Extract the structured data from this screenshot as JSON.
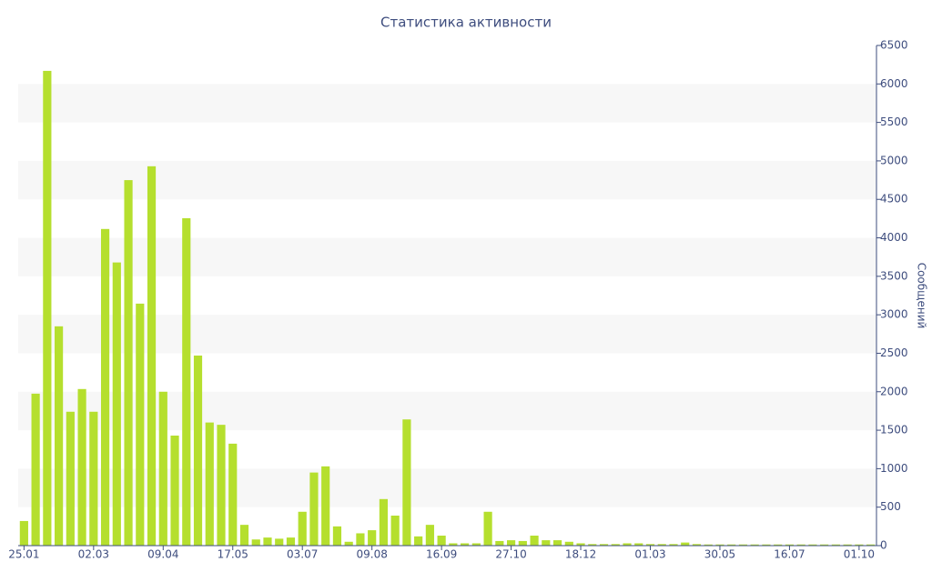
{
  "chart_data": {
    "type": "bar",
    "title": "Статистика активности",
    "y_label": "Сообщений",
    "categories": [
      "25.01",
      null,
      null,
      null,
      null,
      null,
      "02.03",
      null,
      null,
      null,
      null,
      null,
      "09.04",
      null,
      null,
      null,
      null,
      null,
      "17.05",
      null,
      null,
      null,
      null,
      null,
      "03.07",
      null,
      null,
      null,
      null,
      null,
      "09.08",
      null,
      null,
      null,
      null,
      null,
      "16.09",
      null,
      null,
      null,
      null,
      null,
      "27.10",
      null,
      null,
      null,
      null,
      null,
      "18.12",
      null,
      null,
      null,
      null,
      null,
      "01.03",
      null,
      null,
      null,
      null,
      null,
      "30.05",
      null,
      null,
      null,
      null,
      null,
      "16.07",
      null,
      null,
      null,
      null,
      null,
      "01.10",
      null
    ],
    "values": [
      320,
      1975,
      6170,
      2850,
      1740,
      2035,
      1740,
      4115,
      3680,
      4750,
      3145,
      4930,
      2000,
      1430,
      4255,
      2470,
      1600,
      1570,
      1325,
      270,
      80,
      105,
      90,
      105,
      440,
      950,
      1030,
      250,
      50,
      160,
      200,
      605,
      390,
      1640,
      120,
      270,
      130,
      30,
      30,
      30,
      440,
      60,
      70,
      60,
      130,
      70,
      70,
      50,
      30,
      20,
      20,
      20,
      30,
      30,
      20,
      20,
      20,
      40,
      20,
      15,
      15,
      15,
      15,
      15,
      15,
      15,
      15,
      15,
      15,
      15,
      15,
      15,
      15,
      15
    ],
    "color": "#b5df2e",
    "ylim": [
      0,
      6500
    ],
    "yticks": [
      0,
      500,
      1000,
      1500,
      2000,
      2500,
      3000,
      3500,
      4000,
      4500,
      5000,
      5500,
      6000,
      6500
    ],
    "y_axis_side": "right",
    "grid": true
  }
}
